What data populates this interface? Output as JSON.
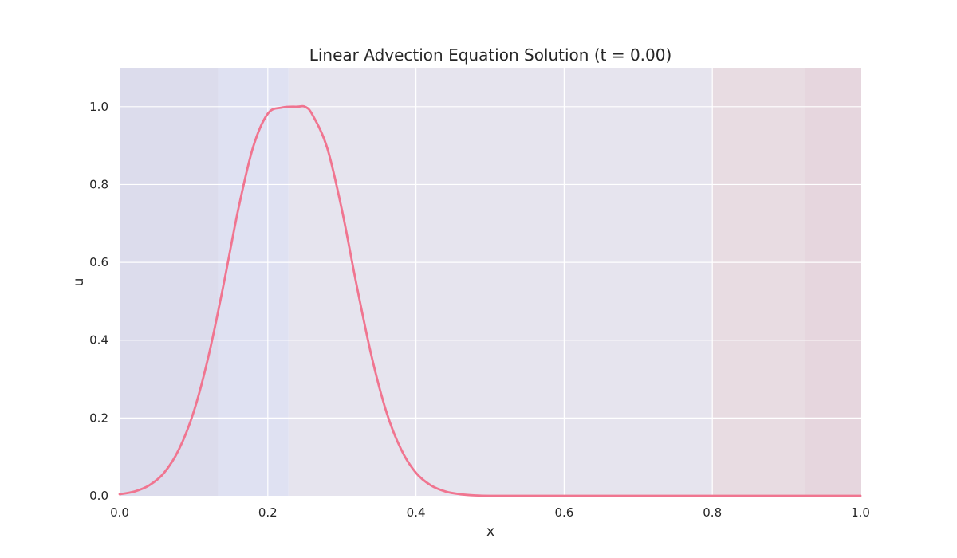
{
  "chart_data": {
    "type": "line",
    "title": "Linear Advection Equation Solution (t = 0.00)",
    "xlabel": "x",
    "ylabel": "u",
    "xlim": [
      0.0,
      1.0
    ],
    "ylim": [
      0.0,
      1.1
    ],
    "xticks": [
      "0.0",
      "0.2",
      "0.4",
      "0.6",
      "0.8",
      "1.0"
    ],
    "yticks": [
      "0.0",
      "0.2",
      "0.4",
      "0.6",
      "0.8",
      "1.0"
    ],
    "grid": true,
    "legend": "none",
    "background_bands": [
      {
        "x0": 0.0,
        "x1": 0.133,
        "color": "#dcdcec"
      },
      {
        "x0": 0.133,
        "x1": 0.228,
        "color": "#dfe1f2"
      },
      {
        "x0": 0.228,
        "x1": 0.8,
        "color": "#e6e4ee"
      },
      {
        "x0": 0.8,
        "x1": 0.925,
        "color": "#e8dce2"
      },
      {
        "x0": 0.925,
        "x1": 1.0,
        "color": "#e6d6de"
      }
    ],
    "series": [
      {
        "color": "#f07590",
        "x": [
          0.0,
          0.02,
          0.04,
          0.06,
          0.08,
          0.1,
          0.12,
          0.14,
          0.16,
          0.18,
          0.2,
          0.22,
          0.24,
          0.25,
          0.26,
          0.28,
          0.3,
          0.32,
          0.34,
          0.36,
          0.38,
          0.4,
          0.42,
          0.44,
          0.46,
          0.48,
          0.5,
          0.55,
          0.6,
          0.7,
          0.8,
          0.9,
          1.0
        ],
        "y": [
          0.004,
          0.011,
          0.027,
          0.059,
          0.119,
          0.216,
          0.359,
          0.54,
          0.735,
          0.895,
          0.982,
          0.998,
          1.0,
          1.0,
          0.98,
          0.895,
          0.735,
          0.54,
          0.359,
          0.216,
          0.119,
          0.059,
          0.027,
          0.011,
          0.004,
          0.001,
          0.0,
          0.0,
          0.0,
          0.0,
          0.0,
          0.0,
          0.0
        ]
      }
    ]
  }
}
